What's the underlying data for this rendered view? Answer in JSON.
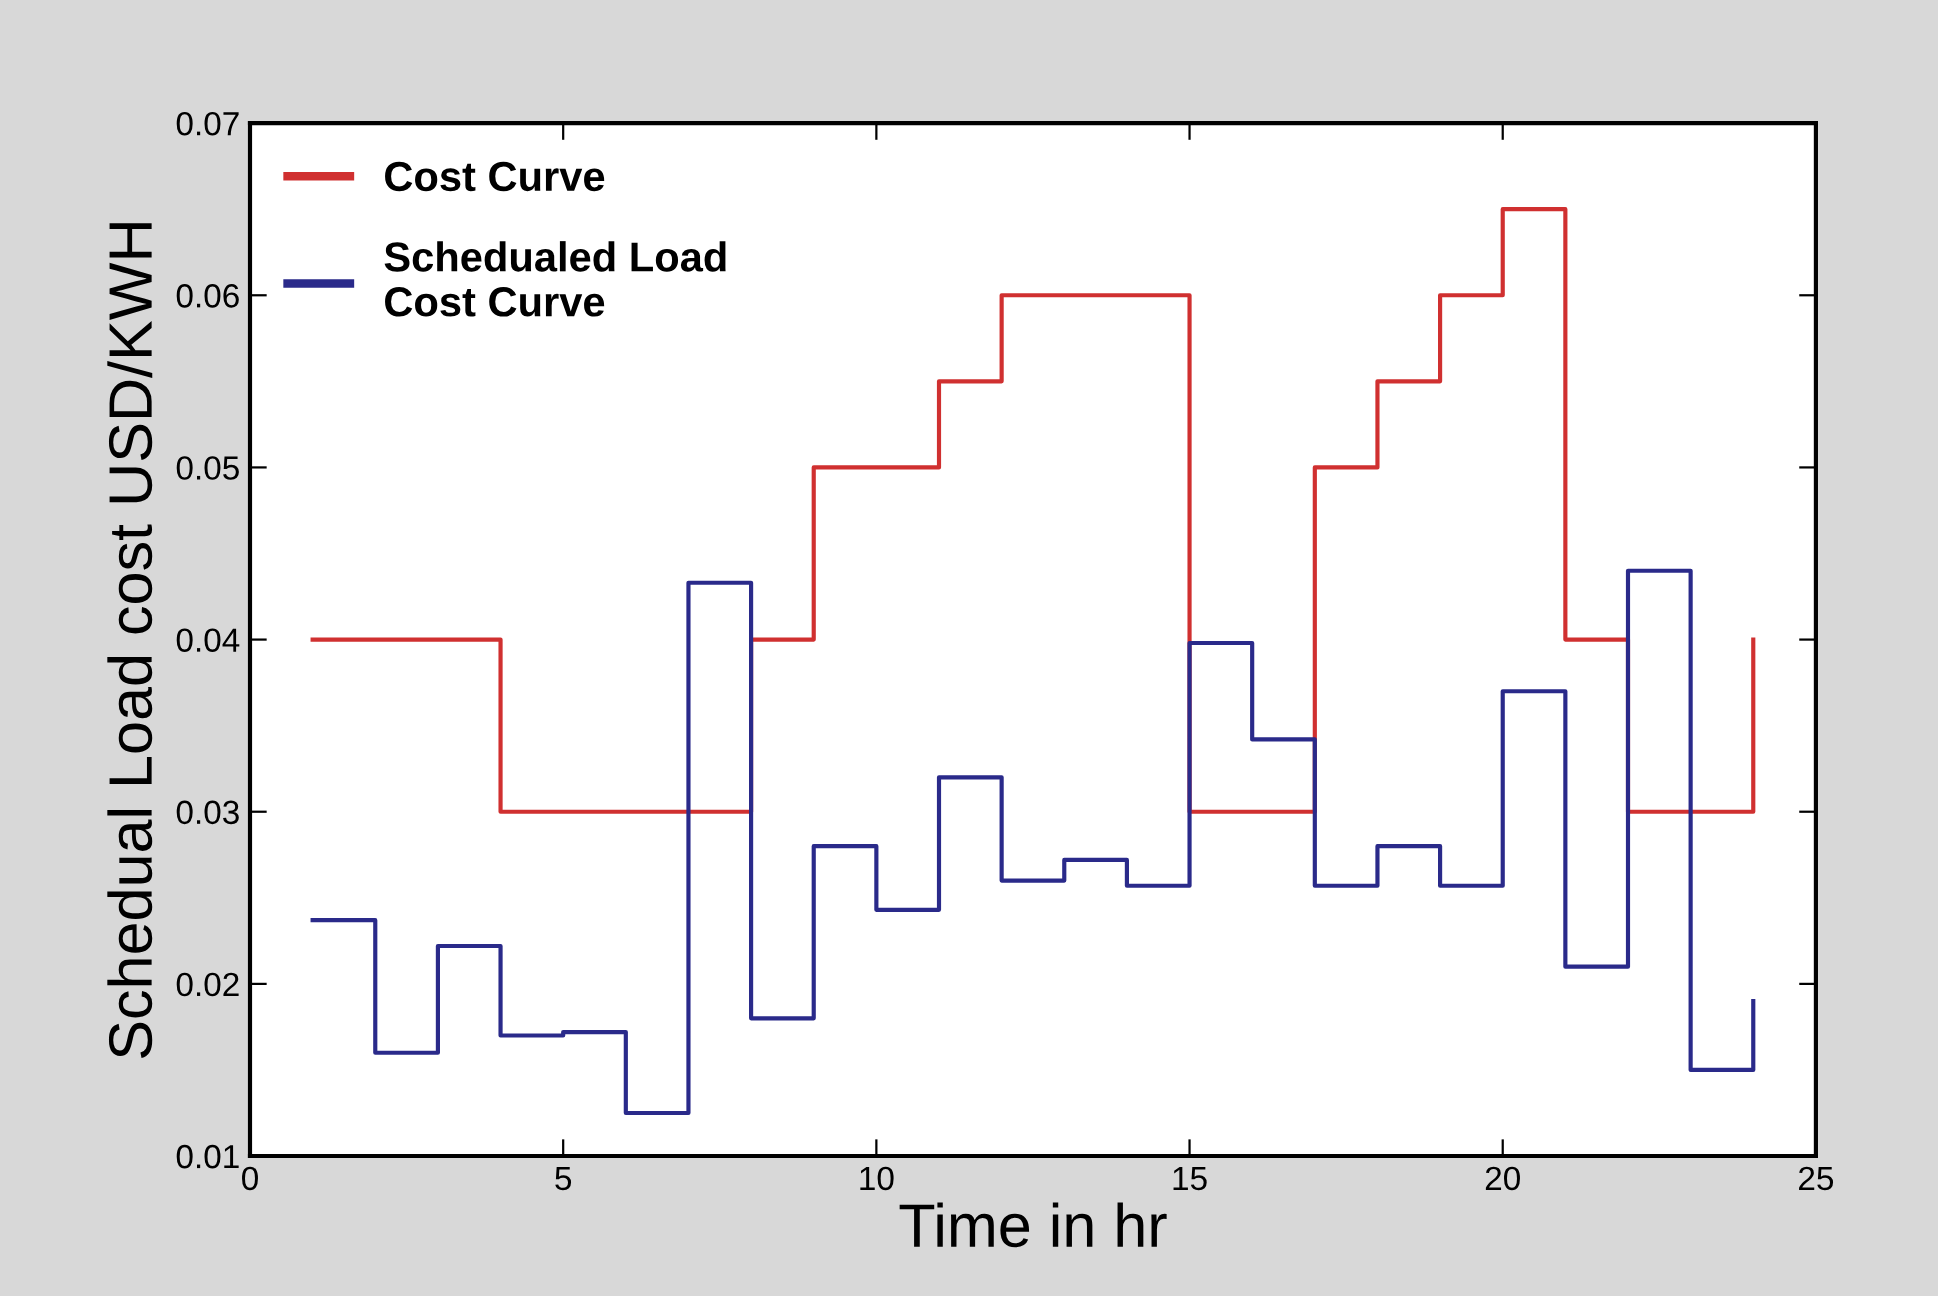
{
  "chart_data": {
    "type": "step",
    "xlabel": "Time in hr",
    "ylabel": "Schedual Load cost USD/KWH",
    "x": [
      1,
      2,
      3,
      4,
      5,
      6,
      7,
      8,
      9,
      10,
      11,
      12,
      13,
      14,
      15,
      16,
      17,
      18,
      19,
      20,
      21,
      22,
      23,
      24
    ],
    "series": [
      {
        "name": "Cost Curve",
        "color": "#d03030",
        "values": [
          0.04,
          0.04,
          0.04,
          0.03,
          0.03,
          0.03,
          0.03,
          0.04,
          0.05,
          0.05,
          0.055,
          0.06,
          0.06,
          0.06,
          0.03,
          0.03,
          0.05,
          0.055,
          0.06,
          0.065,
          0.04,
          0.03,
          0.03,
          0.04
        ]
      },
      {
        "name": "Schedualed Load\nCost Curve",
        "color": "#2a2a8a",
        "values": [
          0.0237,
          0.016,
          0.0222,
          0.017,
          0.0172,
          0.0125,
          0.0433,
          0.018,
          0.028,
          0.0243,
          0.032,
          0.026,
          0.0272,
          0.0257,
          0.0398,
          0.0342,
          0.0257,
          0.028,
          0.0257,
          0.037,
          0.021,
          0.044,
          0.015,
          0.019
        ]
      }
    ],
    "xlim": [
      0,
      25
    ],
    "ylim": [
      0.01,
      0.07
    ],
    "xticks": [
      0,
      5,
      10,
      15,
      20,
      25
    ],
    "yticks": [
      {
        "value": 0.01,
        "label": "0.01"
      },
      {
        "value": 0.02,
        "label": "0.02"
      },
      {
        "value": 0.03,
        "label": "0.03"
      },
      {
        "value": 0.04,
        "label": "0.04"
      },
      {
        "value": 0.05,
        "label": "0.05"
      },
      {
        "value": 0.06,
        "label": "0.06"
      },
      {
        "value": 0.07,
        "label": "0.07"
      }
    ],
    "legend": "top left",
    "grid": false
  }
}
